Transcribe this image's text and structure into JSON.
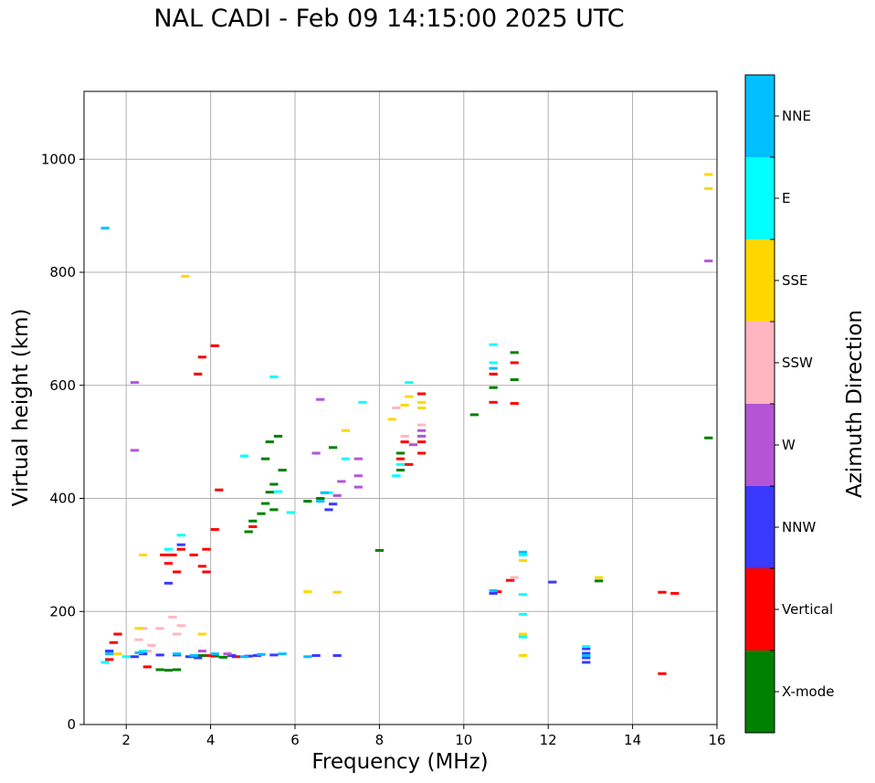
{
  "chart_data": {
    "type": "scatter",
    "title": "NAL CADI - Feb 09 14:15:00 2025 UTC",
    "xlabel": "Frequency (MHz)",
    "ylabel": "Virtual height (km)",
    "xlim": [
      1,
      16
    ],
    "ylim": [
      0,
      1120
    ],
    "xticks": [
      "2",
      "4",
      "6",
      "8",
      "10",
      "12",
      "14",
      "16"
    ],
    "yticks": [
      "0",
      "200",
      "400",
      "600",
      "800",
      "1000"
    ],
    "grid": true,
    "colorbar": {
      "label": "Azimuth Direction",
      "categories": [
        "X-mode",
        "Vertical",
        "NNW",
        "W",
        "SSW",
        "SSE",
        "E",
        "NNE"
      ],
      "colors": [
        "#008000",
        "#ff0000",
        "#3a3aff",
        "#b455d6",
        "#ffb6c1",
        "#ffd700",
        "#00ffff",
        "#00bfff"
      ]
    },
    "series": [
      {
        "name": "X-mode",
        "points": [
          [
            2.8,
            97
          ],
          [
            3.0,
            96
          ],
          [
            3.2,
            97
          ],
          [
            3.8,
            122
          ],
          [
            4.1,
            121
          ],
          [
            4.3,
            119
          ],
          [
            4.9,
            341
          ],
          [
            5.0,
            360
          ],
          [
            5.2,
            373
          ],
          [
            5.3,
            391
          ],
          [
            5.3,
            470
          ],
          [
            5.4,
            411
          ],
          [
            5.4,
            500
          ],
          [
            5.5,
            380
          ],
          [
            5.5,
            425
          ],
          [
            5.6,
            510
          ],
          [
            5.7,
            450
          ],
          [
            6.3,
            395
          ],
          [
            6.6,
            400
          ],
          [
            6.9,
            490
          ],
          [
            8.0,
            308
          ],
          [
            8.5,
            450
          ],
          [
            8.5,
            480
          ],
          [
            10.25,
            548
          ],
          [
            10.7,
            596
          ],
          [
            11.2,
            658
          ],
          [
            11.2,
            610
          ],
          [
            13.2,
            254
          ],
          [
            15.8,
            507
          ]
        ]
      },
      {
        "name": "Vertical",
        "points": [
          [
            1.6,
            115
          ],
          [
            1.7,
            145
          ],
          [
            1.8,
            160
          ],
          [
            2.5,
            102
          ],
          [
            2.9,
            300
          ],
          [
            3.0,
            285
          ],
          [
            3.1,
            300
          ],
          [
            3.2,
            270
          ],
          [
            3.3,
            310
          ],
          [
            3.6,
            300
          ],
          [
            3.8,
            280
          ],
          [
            3.9,
            270
          ],
          [
            3.9,
            310
          ],
          [
            3.8,
            650
          ],
          [
            4.1,
            670
          ],
          [
            4.1,
            345
          ],
          [
            4.2,
            415
          ],
          [
            3.7,
            620
          ],
          [
            4.0,
            122
          ],
          [
            4.6,
            120
          ],
          [
            5.0,
            350
          ],
          [
            8.5,
            470
          ],
          [
            8.6,
            500
          ],
          [
            8.7,
            460
          ],
          [
            9.0,
            480
          ],
          [
            9.0,
            500
          ],
          [
            9.0,
            585
          ],
          [
            10.7,
            620
          ],
          [
            10.7,
            570
          ],
          [
            10.8,
            235
          ],
          [
            11.1,
            255
          ],
          [
            11.2,
            568
          ],
          [
            11.2,
            640
          ],
          [
            14.7,
            90
          ],
          [
            14.7,
            234
          ],
          [
            15.0,
            232
          ]
        ]
      },
      {
        "name": "NNW",
        "points": [
          [
            1.6,
            130
          ],
          [
            2.2,
            120
          ],
          [
            2.4,
            125
          ],
          [
            2.8,
            123
          ],
          [
            3.0,
            250
          ],
          [
            3.2,
            123
          ],
          [
            3.3,
            318
          ],
          [
            3.5,
            120
          ],
          [
            3.7,
            118
          ],
          [
            4.5,
            122
          ],
          [
            4.9,
            121
          ],
          [
            5.1,
            122
          ],
          [
            5.5,
            123
          ],
          [
            6.5,
            122
          ],
          [
            6.8,
            380
          ],
          [
            6.9,
            390
          ],
          [
            7.0,
            122
          ],
          [
            10.7,
            232
          ],
          [
            12.1,
            252
          ],
          [
            12.9,
            110
          ],
          [
            12.9,
            118
          ],
          [
            12.9,
            126
          ],
          [
            12.9,
            134
          ]
        ]
      },
      {
        "name": "W",
        "points": [
          [
            2.2,
            485
          ],
          [
            2.2,
            605
          ],
          [
            3.8,
            130
          ],
          [
            4.4,
            125
          ],
          [
            6.5,
            480
          ],
          [
            6.6,
            575
          ],
          [
            7.0,
            405
          ],
          [
            7.1,
            430
          ],
          [
            7.5,
            440
          ],
          [
            7.5,
            420
          ],
          [
            7.5,
            470
          ],
          [
            8.8,
            495
          ],
          [
            9.0,
            510
          ],
          [
            9.0,
            520
          ],
          [
            15.8,
            820
          ]
        ]
      },
      {
        "name": "SSW",
        "points": [
          [
            2.3,
            150
          ],
          [
            2.4,
            170
          ],
          [
            2.5,
            130
          ],
          [
            2.6,
            140
          ],
          [
            2.8,
            170
          ],
          [
            3.1,
            190
          ],
          [
            3.2,
            160
          ],
          [
            3.3,
            175
          ],
          [
            8.4,
            560
          ],
          [
            8.6,
            510
          ],
          [
            9.0,
            530
          ],
          [
            11.2,
            260
          ]
        ]
      },
      {
        "name": "SSE",
        "points": [
          [
            1.8,
            125
          ],
          [
            2.3,
            170
          ],
          [
            2.4,
            300
          ],
          [
            3.4,
            793
          ],
          [
            3.8,
            160
          ],
          [
            6.3,
            235
          ],
          [
            7.0,
            234
          ],
          [
            7.2,
            520
          ],
          [
            8.3,
            540
          ],
          [
            8.6,
            565
          ],
          [
            8.7,
            580
          ],
          [
            9.0,
            560
          ],
          [
            9.0,
            570
          ],
          [
            11.4,
            122
          ],
          [
            11.4,
            160
          ],
          [
            11.4,
            290
          ],
          [
            13.2,
            260
          ],
          [
            15.8,
            948
          ],
          [
            15.8,
            973
          ]
        ]
      },
      {
        "name": "E",
        "points": [
          [
            1.5,
            110
          ],
          [
            2.0,
            120
          ],
          [
            2.4,
            130
          ],
          [
            3.0,
            310
          ],
          [
            3.3,
            335
          ],
          [
            4.8,
            475
          ],
          [
            5.5,
            615
          ],
          [
            5.6,
            412
          ],
          [
            5.9,
            375
          ],
          [
            6.8,
            410
          ],
          [
            7.2,
            470
          ],
          [
            7.6,
            570
          ],
          [
            8.4,
            440
          ],
          [
            8.5,
            460
          ],
          [
            8.7,
            605
          ],
          [
            10.7,
            672
          ],
          [
            10.7,
            640
          ],
          [
            11.4,
            195
          ],
          [
            11.4,
            230
          ],
          [
            11.4,
            300
          ],
          [
            11.4,
            155
          ],
          [
            12.9,
            138
          ]
        ]
      },
      {
        "name": "NNE",
        "points": [
          [
            1.5,
            878
          ],
          [
            1.6,
            125
          ],
          [
            2.3,
            127
          ],
          [
            3.2,
            125
          ],
          [
            3.6,
            122
          ],
          [
            4.1,
            125
          ],
          [
            4.8,
            120
          ],
          [
            5.2,
            124
          ],
          [
            5.7,
            125
          ],
          [
            6.3,
            120
          ],
          [
            6.6,
            395
          ],
          [
            6.7,
            410
          ],
          [
            10.7,
            237
          ],
          [
            10.7,
            630
          ],
          [
            11.4,
            305
          ],
          [
            12.9,
            122
          ]
        ]
      }
    ]
  }
}
